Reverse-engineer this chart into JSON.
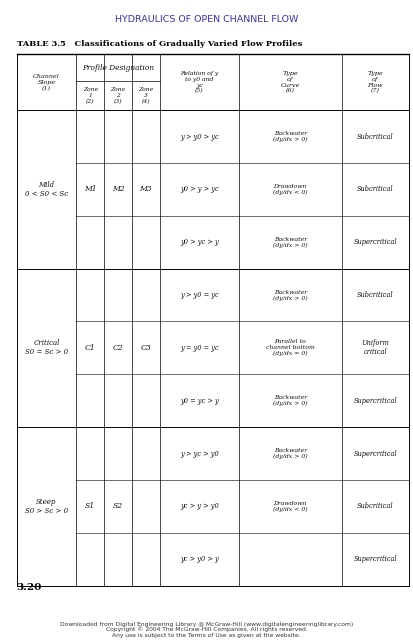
{
  "page_header": "HYDRAULICS OF OPEN CHANNEL FLOW",
  "table_title": "TABLE 3.5   Classifications of Gradually Varied Flow Profiles",
  "section_number": "3.20",
  "footer_line1": "Downloaded from Digital Engineering Library @ McGraw-Hill (www.digitalengineeringlibrary.com)",
  "footer_line2": "Copyright © 2004 The McGraw-Hill Companies. All rights reserved.",
  "footer_line3": "Any use is subject to the Terms of Use as given at the website.",
  "header_color": "#3333aa",
  "bg_color": "#ffffff",
  "text_color": "#000000",
  "col0_header": "Channel\nSlope\n(1)",
  "profile_designation": "Profile Designation",
  "zone_headers": [
    "Zone\n1\n(2)",
    "Zone\n2\n(3)",
    "Zone\n3\n(4)"
  ],
  "col4_header": "Relation of y\nto y0 and\nyc\n(5)",
  "col5_header": "Type\nof\nCurve\n(6)",
  "col6_header": "Type\nof\nFlow\n(7)",
  "rows": [
    {
      "channel_slope": "Mild\n0 < S0 < Sc",
      "zone1": "M1",
      "zone2": "M2",
      "zone3": "M3",
      "relations": [
        "y > y0 > yc",
        "y0 > y > yc",
        "y0 > yc > y"
      ],
      "curves": [
        "Backwater\n(dy/dx > 0)",
        "Drawdown\n(dy/dx < 0)",
        "Backwater\n(dy/dx > 0)"
      ],
      "flow_types": [
        "Subcritical",
        "Subcritical",
        "Supercritical"
      ]
    },
    {
      "channel_slope": "Critical\nS0 = Sc > 0",
      "zone1": "C1",
      "zone2": "C2",
      "zone3": "C3",
      "relations": [
        "y > y0 = yc",
        "y = y0 = yc",
        "y0 = yc > y"
      ],
      "curves": [
        "Backwater\n(dy/dx > 0)",
        "Parallel to\nchannel bottom\n(dy/dx = 0)",
        "Backwater\n(dy/dx > 0)"
      ],
      "flow_types": [
        "Subcritical",
        "Uniform\ncritical",
        "Supercritical"
      ]
    },
    {
      "channel_slope": "Steep\nS0 > Sc > 0",
      "zone1": "S1",
      "zone2": "S2",
      "zone3": "",
      "relations": [
        "y > yc > y0",
        "yc > y > y0",
        "yc > y0 > y"
      ],
      "curves": [
        "Backwater\n(dy/dx > 0)",
        "Drawdown\n(dy/dx < 0)",
        ""
      ],
      "flow_types": [
        "Supercritical",
        "Subcritical",
        "Supercritical"
      ]
    }
  ]
}
